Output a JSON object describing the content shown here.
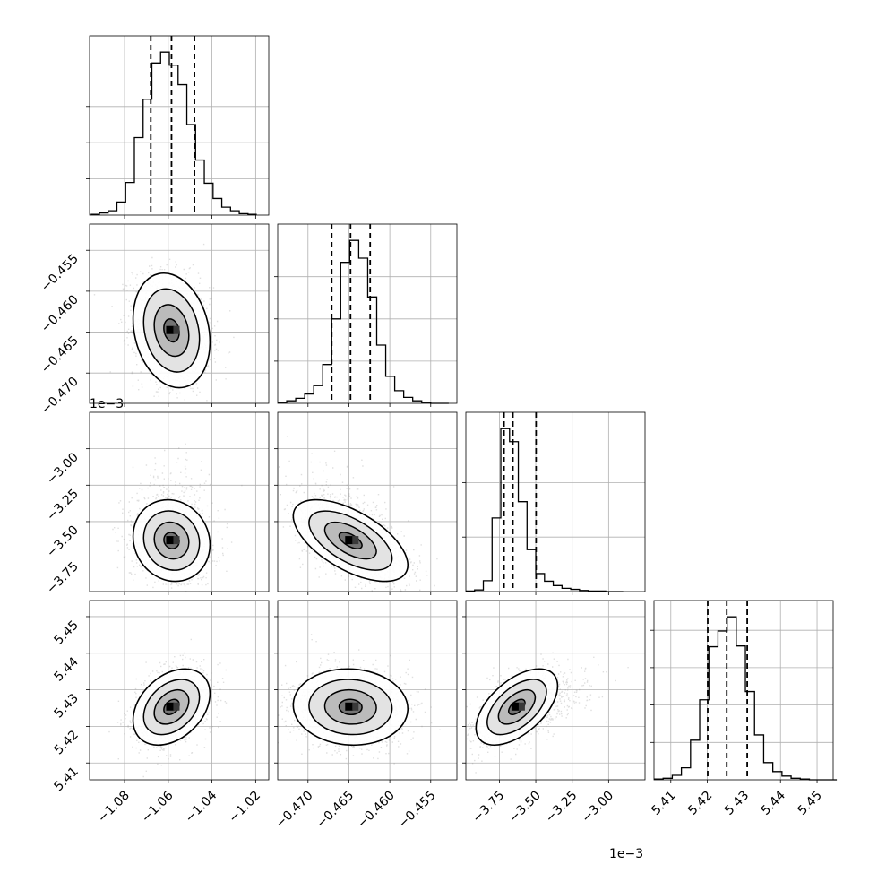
{
  "chart_data": {
    "type": "corner",
    "n_params": 4,
    "grid": true,
    "axes": [
      {
        "range": [
          -1.096,
          -1.014
        ],
        "ticks": [
          -1.08,
          -1.06,
          -1.04,
          -1.02
        ],
        "tick_labels": [
          "−1.08",
          "−1.06",
          "−1.04",
          "−1.02"
        ],
        "offset_label": "",
        "quantiles": [
          -1.068,
          -1.0585,
          -1.048
        ],
        "hist_x": [
          -1.0935,
          -1.0895,
          -1.0855,
          -1.0815,
          -1.0775,
          -1.0735,
          -1.0695,
          -1.0655,
          -1.0615,
          -1.0575,
          -1.0535,
          -1.0495,
          -1.0455,
          -1.0415,
          -1.0375,
          -1.0335,
          -1.0295,
          -1.0255,
          -1.0215
        ],
        "hist_y": [
          1,
          3,
          6,
          18,
          45,
          107,
          160,
          210,
          225,
          207,
          180,
          125,
          76,
          44,
          23,
          11,
          6,
          2,
          1
        ],
        "hist_ticks": [
          50,
          100,
          150
        ]
      },
      {
        "range": [
          -0.4737,
          -0.4518
        ],
        "ticks": [
          -0.47,
          -0.465,
          -0.46,
          -0.455
        ],
        "tick_labels": [
          "−0.470",
          "−0.465",
          "−0.460",
          "−0.455"
        ],
        "offset_label": "",
        "quantiles": [
          -0.4671,
          -0.4648,
          -0.4624
        ],
        "hist_x": [
          -0.47315,
          -0.47205,
          -0.47095,
          -0.46985,
          -0.46875,
          -0.46765,
          -0.46655,
          -0.46545,
          -0.46435,
          -0.46325,
          -0.46215,
          -0.46105,
          -0.45995,
          -0.45885,
          -0.45775,
          -0.45665,
          -0.45555,
          -0.45445,
          -0.45335
        ],
        "hist_y": [
          1,
          3,
          6,
          11,
          21,
          46,
          100,
          167,
          193,
          172,
          126,
          69,
          32,
          15,
          7,
          3,
          1,
          0,
          0
        ],
        "hist_ticks": [
          50,
          100,
          150
        ]
      },
      {
        "range": [
          -3.98,
          -2.75
        ],
        "ticks": [
          -3.75,
          -3.5,
          -3.25,
          -3.0
        ],
        "tick_labels": [
          "−3.75",
          "−3.50",
          "−3.25",
          "−3.00"
        ],
        "offset_label": "1e−3",
        "quantiles": [
          -3.718,
          -3.657,
          -3.498
        ],
        "hist_x": [
          -3.95,
          -3.89,
          -3.83,
          -3.77,
          -3.71,
          -3.65,
          -3.59,
          -3.53,
          -3.47,
          -3.41,
          -3.35,
          -3.29,
          -3.23,
          -3.17,
          -3.11,
          -3.05,
          -2.99,
          -2.93
        ],
        "hist_y": [
          1,
          3,
          20,
          135,
          299,
          275,
          165,
          77,
          33,
          19,
          11,
          6,
          4,
          2,
          1,
          1,
          0,
          0
        ],
        "hist_ticks": [
          100,
          200
        ]
      },
      {
        "range": [
          5.4054,
          5.4544
        ],
        "ticks": [
          5.41,
          5.42,
          5.43,
          5.44,
          5.45
        ],
        "tick_labels": [
          "5.41",
          "5.42",
          "5.43",
          "5.44",
          "5.45"
        ],
        "offset_label": "",
        "quantiles": [
          5.4201,
          5.4253,
          5.4309
        ],
        "hist_x": [
          5.40665,
          5.40915,
          5.41165,
          5.41415,
          5.41665,
          5.41915,
          5.42165,
          5.42415,
          5.42665,
          5.42915,
          5.43165,
          5.43415,
          5.43665,
          5.43915,
          5.44165,
          5.44415,
          5.44665,
          5.44915,
          5.45165,
          5.45415
        ],
        "hist_y": [
          1,
          2,
          6,
          16,
          53,
          107,
          178,
          199,
          218,
          179,
          118,
          60,
          23,
          11,
          5,
          2,
          1,
          0,
          0,
          0
        ],
        "hist_ticks": [
          50,
          100,
          150,
          200
        ]
      }
    ],
    "pairs": [
      {
        "row": 1,
        "col": 0,
        "mean": [
          -1.0585,
          -0.4648
        ],
        "sd": [
          0.0088,
          0.0035
        ],
        "rho": -0.2
      },
      {
        "row": 2,
        "col": 0,
        "mean": [
          -1.0585,
          -3.63
        ],
        "sd": [
          0.0088,
          0.14
        ],
        "rho": -0.1
      },
      {
        "row": 2,
        "col": 1,
        "mean": [
          -0.4648,
          -3.63
        ],
        "sd": [
          0.0035,
          0.14
        ],
        "rho": -0.6
      },
      {
        "row": 3,
        "col": 0,
        "mean": [
          -1.0585,
          5.4253
        ],
        "sd": [
          0.0088,
          0.0052
        ],
        "rho": 0.35
      },
      {
        "row": 3,
        "col": 1,
        "mean": [
          -0.4648,
          5.4253
        ],
        "sd": [
          0.0035,
          0.0052
        ],
        "rho": -0.05
      },
      {
        "row": 3,
        "col": 2,
        "mean": [
          -3.63,
          5.4253
        ],
        "sd": [
          0.14,
          0.0052
        ],
        "rho": 0.55
      }
    ]
  }
}
